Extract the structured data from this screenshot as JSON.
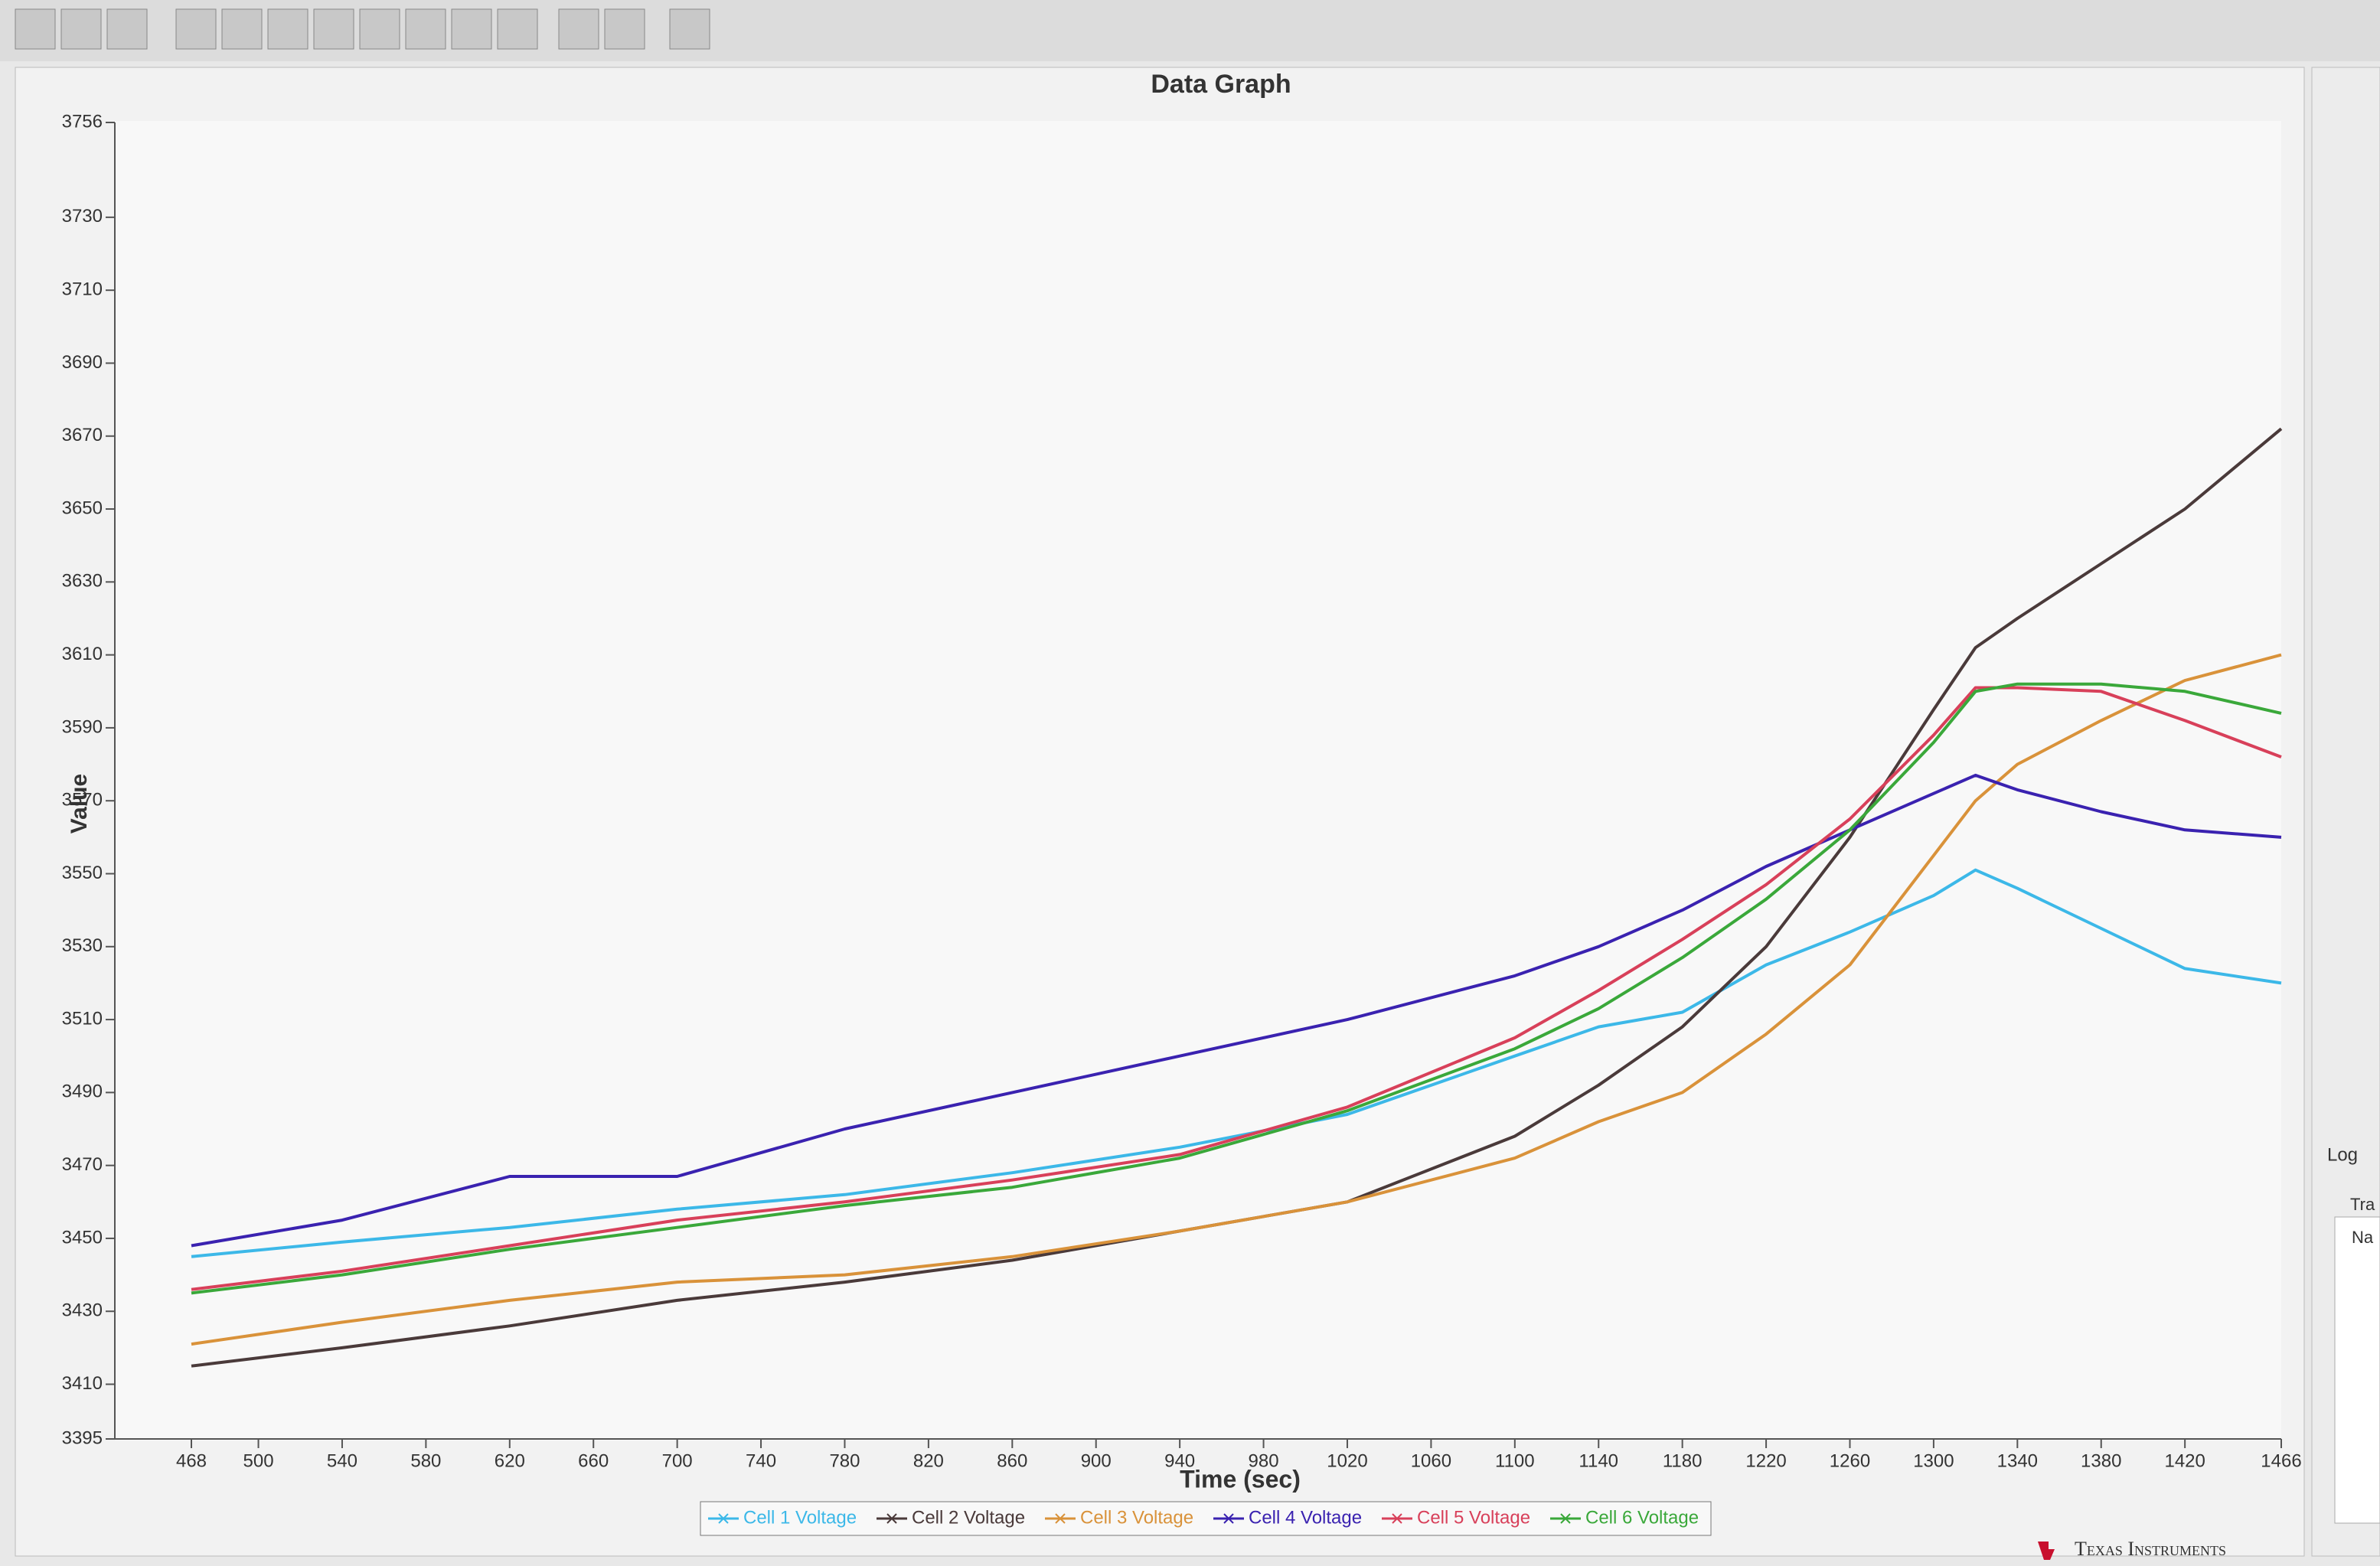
{
  "chart_data": {
    "type": "line",
    "title": "Data Graph",
    "x_label": "Time (sec)",
    "y_label": "Value",
    "x": [
      468,
      540,
      620,
      700,
      780,
      860,
      940,
      1020,
      1100,
      1140,
      1180,
      1220,
      1260,
      1300,
      1320,
      1340,
      1380,
      1420,
      1466
    ],
    "series": [
      {
        "name": "Cell 1 Voltage",
        "color": "#3cb8e8",
        "values": [
          3445,
          3449,
          3453,
          3458,
          3462,
          3468,
          3475,
          3484,
          3500,
          3508,
          3512,
          3525,
          3534,
          3544,
          3551,
          3546,
          3535,
          3524,
          3520
        ]
      },
      {
        "name": "Cell 2 Voltage",
        "color": "#4a3a3a",
        "values": [
          3415,
          3420,
          3426,
          3433,
          3438,
          3444,
          3452,
          3460,
          3478,
          3492,
          3508,
          3530,
          3560,
          3595,
          3612,
          3620,
          3635,
          3650,
          3672
        ]
      },
      {
        "name": "Cell 3 Voltage",
        "color": "#d9923a",
        "values": [
          3421,
          3427,
          3433,
          3438,
          3440,
          3445,
          3452,
          3460,
          3472,
          3482,
          3490,
          3506,
          3525,
          3555,
          3570,
          3580,
          3592,
          3603,
          3610
        ]
      },
      {
        "name": "Cell 4 Voltage",
        "color": "#3a22b0",
        "values": [
          3448,
          3455,
          3467,
          3467,
          3480,
          3490,
          3500,
          3510,
          3522,
          3530,
          3540,
          3552,
          3562,
          3572,
          3577,
          3573,
          3567,
          3562,
          3560
        ]
      },
      {
        "name": "Cell 5 Voltage",
        "color": "#d8405a",
        "values": [
          3436,
          3441,
          3448,
          3455,
          3460,
          3466,
          3473,
          3486,
          3505,
          3518,
          3532,
          3547,
          3565,
          3588,
          3601,
          3601,
          3600,
          3592,
          3582
        ]
      },
      {
        "name": "Cell 6 Voltage",
        "color": "#3aa83a",
        "values": [
          3435,
          3440,
          3447,
          3453,
          3459,
          3464,
          3472,
          3485,
          3502,
          3513,
          3527,
          3543,
          3562,
          3586,
          3600,
          3602,
          3602,
          3600,
          3594
        ]
      }
    ],
    "xlim": [
      468,
      1466
    ],
    "xticks": [
      468,
      500,
      540,
      580,
      620,
      660,
      700,
      740,
      780,
      820,
      860,
      900,
      940,
      980,
      1020,
      1060,
      1100,
      1140,
      1180,
      1220,
      1260,
      1300,
      1340,
      1380,
      1420,
      1466
    ],
    "ylim": [
      3395,
      3756
    ],
    "yticks": [
      3395,
      3410,
      3430,
      3450,
      3470,
      3490,
      3510,
      3530,
      3550,
      3570,
      3590,
      3610,
      3630,
      3650,
      3670,
      3690,
      3710,
      3730,
      3756
    ],
    "grid": false,
    "legend": "bottom"
  },
  "side_panel": {
    "log": "Log",
    "group": "Tra",
    "field": "Na"
  },
  "footer": {
    "brand": "Texas Instruments"
  }
}
